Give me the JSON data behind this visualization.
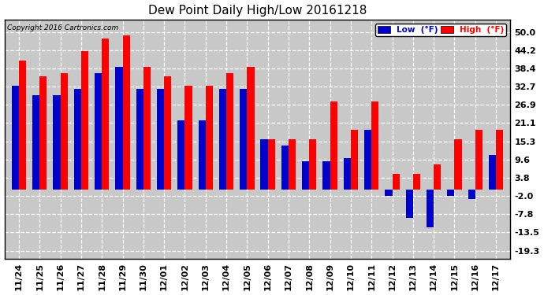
{
  "title": "Dew Point Daily High/Low 20161218",
  "copyright": "Copyright 2016 Cartronics.com",
  "dates": [
    "11/24",
    "11/25",
    "11/26",
    "11/27",
    "11/28",
    "11/29",
    "11/30",
    "12/01",
    "12/02",
    "12/03",
    "12/04",
    "12/05",
    "12/06",
    "12/07",
    "12/08",
    "12/09",
    "12/10",
    "12/11",
    "12/12",
    "12/13",
    "12/14",
    "12/15",
    "12/16",
    "12/17"
  ],
  "high": [
    41.0,
    36.0,
    37.0,
    44.0,
    48.0,
    49.0,
    39.0,
    36.0,
    33.0,
    33.0,
    37.0,
    39.0,
    16.0,
    16.0,
    16.0,
    28.0,
    19.0,
    28.0,
    5.0,
    5.0,
    8.0,
    16.0,
    19.0,
    19.0
  ],
  "low": [
    33.0,
    30.0,
    30.0,
    32.0,
    37.0,
    39.0,
    32.0,
    32.0,
    22.0,
    22.0,
    32.0,
    32.0,
    16.0,
    14.0,
    9.0,
    9.0,
    10.0,
    19.0,
    -2.0,
    -9.0,
    -12.0,
    -2.0,
    -3.0,
    11.0
  ],
  "yticks": [
    50.0,
    44.2,
    38.4,
    32.7,
    26.9,
    21.1,
    15.3,
    9.6,
    3.8,
    -2.0,
    -7.8,
    -13.5,
    -19.3
  ],
  "ylim": [
    -22.0,
    54.0
  ],
  "high_color": "#FF0000",
  "low_color": "#0000CC",
  "bg_color": "#FFFFFF",
  "plot_bg": "#C8C8C8",
  "grid_color": "#FFFFFF",
  "bar_width": 0.35,
  "legend_low_label": "Low  (°F)",
  "legend_high_label": "High  (°F)"
}
